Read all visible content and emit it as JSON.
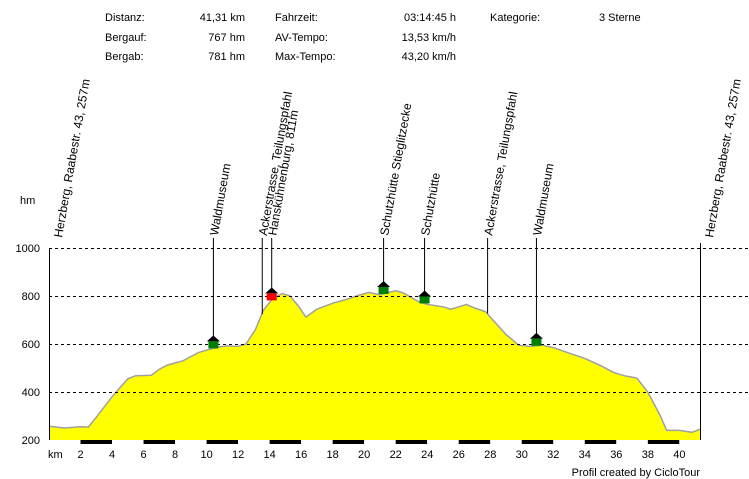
{
  "stats": {
    "distanz_label": "Distanz:",
    "distanz_value": "41,31 km",
    "bergauf_label": "Bergauf:",
    "bergauf_value": "767 hm",
    "bergab_label": "Bergab:",
    "bergab_value": "781 hm",
    "fahrzeit_label": "Fahrzeit:",
    "fahrzeit_value": "03:14:45 h",
    "av_tempo_label": "AV-Tempo:",
    "av_tempo_value": "13,53 km/h",
    "max_tempo_label": "Max-Tempo:",
    "max_tempo_value": "43,20 km/h",
    "kategorie_label": "Kategorie:",
    "kategorie_value": "3 Sterne"
  },
  "credit": "Profil created by CicloTour",
  "colors": {
    "fill": "#ffff00",
    "line": "#a0a0a0",
    "grid": "#000000",
    "hut_green": "#008000",
    "hut_red": "#ff0000"
  },
  "chart_data": {
    "type": "area",
    "ylabel": "hm",
    "xlabel": "km",
    "ylim": [
      200,
      1000
    ],
    "xlim": [
      0,
      41.31
    ],
    "y_ticks": [
      "200",
      "400",
      "600",
      "800",
      "1000"
    ],
    "x_ticks": [
      "2",
      "4",
      "6",
      "8",
      "10",
      "12",
      "14",
      "16",
      "18",
      "20",
      "22",
      "24",
      "26",
      "28",
      "30",
      "32",
      "34",
      "36",
      "38",
      "40"
    ],
    "grid": true,
    "elevation": [
      [
        0,
        257
      ],
      [
        1,
        250
      ],
      [
        2,
        255
      ],
      [
        2.5,
        254
      ],
      [
        3,
        295
      ],
      [
        4,
        380
      ],
      [
        5,
        455
      ],
      [
        5.5,
        468
      ],
      [
        6.5,
        470
      ],
      [
        7,
        495
      ],
      [
        7.5,
        512
      ],
      [
        8.5,
        530
      ],
      [
        9.5,
        565
      ],
      [
        10.3,
        580
      ],
      [
        10.8,
        588
      ],
      [
        11.3,
        592
      ],
      [
        12,
        590
      ],
      [
        12.5,
        600
      ],
      [
        13.1,
        660
      ],
      [
        13.6,
        740
      ],
      [
        14.2,
        790
      ],
      [
        14.8,
        810
      ],
      [
        15.3,
        800
      ],
      [
        15.8,
        760
      ],
      [
        16.3,
        712
      ],
      [
        17,
        745
      ],
      [
        18,
        770
      ],
      [
        19,
        788
      ],
      [
        19.5,
        800
      ],
      [
        20.3,
        815
      ],
      [
        21,
        805
      ],
      [
        22,
        822
      ],
      [
        22.5,
        812
      ],
      [
        23.5,
        775
      ],
      [
        24,
        765
      ],
      [
        25,
        755
      ],
      [
        25.5,
        745
      ],
      [
        26.5,
        765
      ],
      [
        27,
        750
      ],
      [
        27.7,
        735
      ],
      [
        28.3,
        690
      ],
      [
        29,
        640
      ],
      [
        29.8,
        595
      ],
      [
        30.5,
        590
      ],
      [
        31.3,
        595
      ],
      [
        32,
        585
      ],
      [
        33,
        562
      ],
      [
        34,
        540
      ],
      [
        35,
        510
      ],
      [
        35.8,
        482
      ],
      [
        36.5,
        468
      ],
      [
        37.3,
        458
      ],
      [
        38,
        400
      ],
      [
        38.8,
        300
      ],
      [
        39.2,
        240
      ],
      [
        40,
        240
      ],
      [
        40.8,
        232
      ],
      [
        41.31,
        245
      ]
    ],
    "waypoints": [
      {
        "km": 0,
        "label": "Herzberg, Raabestr. 43, 257m",
        "hut": "none"
      },
      {
        "km": 10.4,
        "label": "Waldmuseum",
        "hut": "green"
      },
      {
        "km": 13.5,
        "label": "Ackerstrasse, Teilungspfahl",
        "hut": "none"
      },
      {
        "km": 14.1,
        "label": "Hanskühnenburg, 811m",
        "hut": "red"
      },
      {
        "km": 21.2,
        "label": "Schutzhütte Stieglitzecke",
        "hut": "green"
      },
      {
        "km": 23.8,
        "label": "Schutzhütte",
        "hut": "green"
      },
      {
        "km": 27.8,
        "label": "Ackerstrasse, Teilungspfahl",
        "hut": "none"
      },
      {
        "km": 30.9,
        "label": "Waldmuseum",
        "hut": "green"
      },
      {
        "km": 41.31,
        "label": "Herzberg, Raabestr. 43, 257m",
        "hut": "none"
      }
    ]
  }
}
